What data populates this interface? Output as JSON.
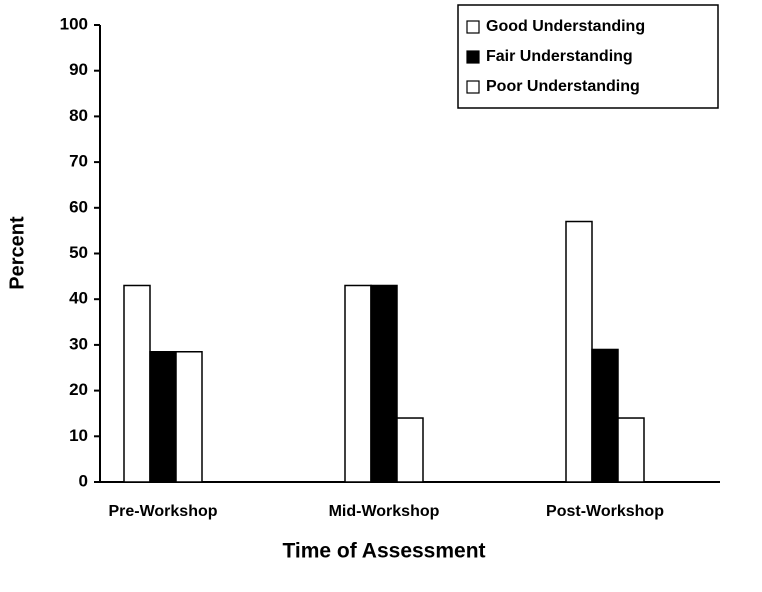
{
  "chart_data": {
    "type": "bar",
    "xlabel": "Time of Assessment",
    "ylabel": "Percent",
    "categories": [
      "Pre-Workshop",
      "Mid-Workshop",
      "Post-Workshop"
    ],
    "series": [
      {
        "name": "Good Understanding",
        "color": "#ffffff",
        "values": [
          43,
          43,
          57
        ]
      },
      {
        "name": "Fair Understanding",
        "color": "#000000",
        "values": [
          28.5,
          43,
          29
        ]
      },
      {
        "name": "Poor Understanding",
        "color": "#ffffff",
        "values": [
          28.5,
          14,
          14
        ]
      }
    ],
    "ylim": [
      0,
      100
    ],
    "yticks": [
      0,
      10,
      20,
      30,
      40,
      50,
      60,
      70,
      80,
      90,
      100
    ],
    "legend": "upper right"
  }
}
